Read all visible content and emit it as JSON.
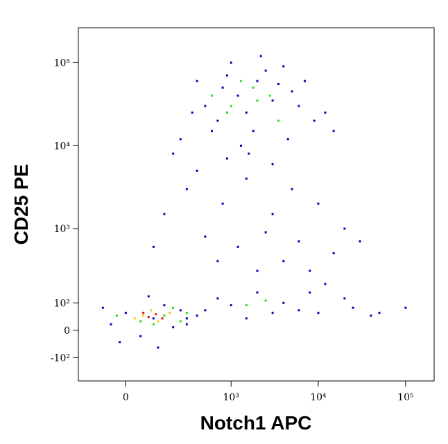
{
  "chart_data": {
    "type": "scatter",
    "x_label": "Notch1 APC",
    "y_label": "CD25 PE",
    "scale": "biexponential",
    "xlim": [
      -200,
      212000
    ],
    "ylim": [
      -230,
      263000
    ],
    "xticks": [
      0,
      {
        "value": 1000,
        "label": "10³"
      },
      {
        "value": 10000,
        "label": "10⁴"
      },
      {
        "value": 100000,
        "label": "10⁵"
      }
    ],
    "yticks": [
      {
        "value": -100,
        "label": "-10²"
      },
      0,
      {
        "value": 100,
        "label": "10²"
      },
      {
        "value": 1000,
        "label": "10³"
      },
      {
        "value": 10000,
        "label": "10⁴"
      },
      {
        "value": 100000,
        "label": "10⁵"
      }
    ],
    "series": [
      {
        "color": "#0000c0",
        "x": [
          500,
          800,
          1200,
          2000,
          3000,
          5000,
          700,
          1500,
          2500,
          4000,
          1000,
          600,
          350,
          250,
          6000,
          9000,
          1800,
          2200,
          3500,
          900,
          1300,
          4500,
          7000,
          12000,
          400,
          200,
          1600,
          3000,
          15000,
          300,
          800,
          1500,
          3000,
          5000,
          10000,
          500,
          1200,
          2500,
          6000,
          20000,
          150,
          100,
          700,
          2000,
          4000,
          8000,
          15000,
          30000,
          400,
          900,
          2000,
          4000,
          8000,
          12000,
          20000,
          25000,
          3000,
          6000,
          1000,
          500,
          300,
          1500,
          10000,
          700,
          50000,
          100000,
          40000,
          -50,
          0,
          50,
          100,
          150,
          200,
          250,
          -20,
          300,
          80,
          120,
          -80,
          400
        ],
        "values": [
          30000,
          50000,
          40000,
          60000,
          35000,
          45000,
          20000,
          25000,
          80000,
          90000,
          100000,
          15000,
          25000,
          12000,
          30000,
          20000,
          15000,
          120000,
          55000,
          70000,
          10000,
          12000,
          60000,
          25000,
          60000,
          8000,
          8000,
          6000,
          15000,
          3000,
          2000,
          4000,
          1500,
          3000,
          2000,
          800,
          600,
          900,
          700,
          1000,
          1500,
          600,
          400,
          300,
          400,
          300,
          500,
          700,
          5000,
          7000,
          150,
          100,
          150,
          200,
          120,
          80,
          60,
          70,
          90,
          70,
          40,
          40,
          60,
          120,
          60,
          80,
          50,
          20,
          60,
          -20,
          40,
          90,
          10,
          70,
          -40,
          20,
          130,
          -60,
          80,
          50
        ]
      },
      {
        "color": "#22dd22",
        "x": [
          600,
          1000,
          1800,
          2800,
          3500,
          1300,
          900,
          2000,
          50,
          150,
          200,
          100,
          250,
          -30,
          1500,
          300,
          2500
        ],
        "values": [
          40000,
          30000,
          50000,
          40000,
          20000,
          60000,
          25000,
          35000,
          30,
          50,
          80,
          20,
          30,
          50,
          90,
          60,
          110
        ]
      },
      {
        "color": "#e8d000",
        "x": [
          60,
          120,
          180,
          30,
          90
        ],
        "values": [
          50,
          30,
          60,
          40,
          70
        ]
      },
      {
        "color": "#e01010",
        "x": [
          80,
          110,
          140,
          60
        ],
        "values": [
          45,
          55,
          40,
          60
        ]
      }
    ]
  }
}
